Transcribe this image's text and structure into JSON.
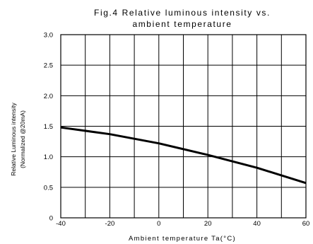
{
  "chart_data": {
    "type": "line",
    "title_lines": [
      "Fig.4 Relative luminous intensity vs.",
      "ambient temperature"
    ],
    "xlabel": "Ambient temperature Ta(°C)",
    "ylabel_lines": [
      "Relative Luminous intensity",
      "(Normalized @20mA)"
    ],
    "xlim": [
      -40,
      60
    ],
    "ylim": [
      0,
      3.0
    ],
    "x_ticks": [
      -40,
      -20,
      0,
      20,
      40,
      60
    ],
    "x_tick_labels": [
      "-40",
      "-20",
      "0",
      "20",
      "40",
      "60"
    ],
    "x_grid": [
      -40,
      -30,
      -20,
      -10,
      0,
      10,
      20,
      30,
      40,
      50,
      60
    ],
    "y_ticks": [
      0,
      0.5,
      1.0,
      1.5,
      2.0,
      2.5,
      3.0
    ],
    "y_tick_labels": [
      "0",
      "0.5",
      "1.0",
      "1.5",
      "2.0",
      "2.5",
      "3.0"
    ],
    "grid": true,
    "series": [
      {
        "color": "#000000",
        "x": [
          -40,
          -20,
          0,
          20,
          40,
          60
        ],
        "y": [
          1.48,
          1.37,
          1.22,
          1.03,
          0.82,
          0.57
        ]
      }
    ]
  }
}
